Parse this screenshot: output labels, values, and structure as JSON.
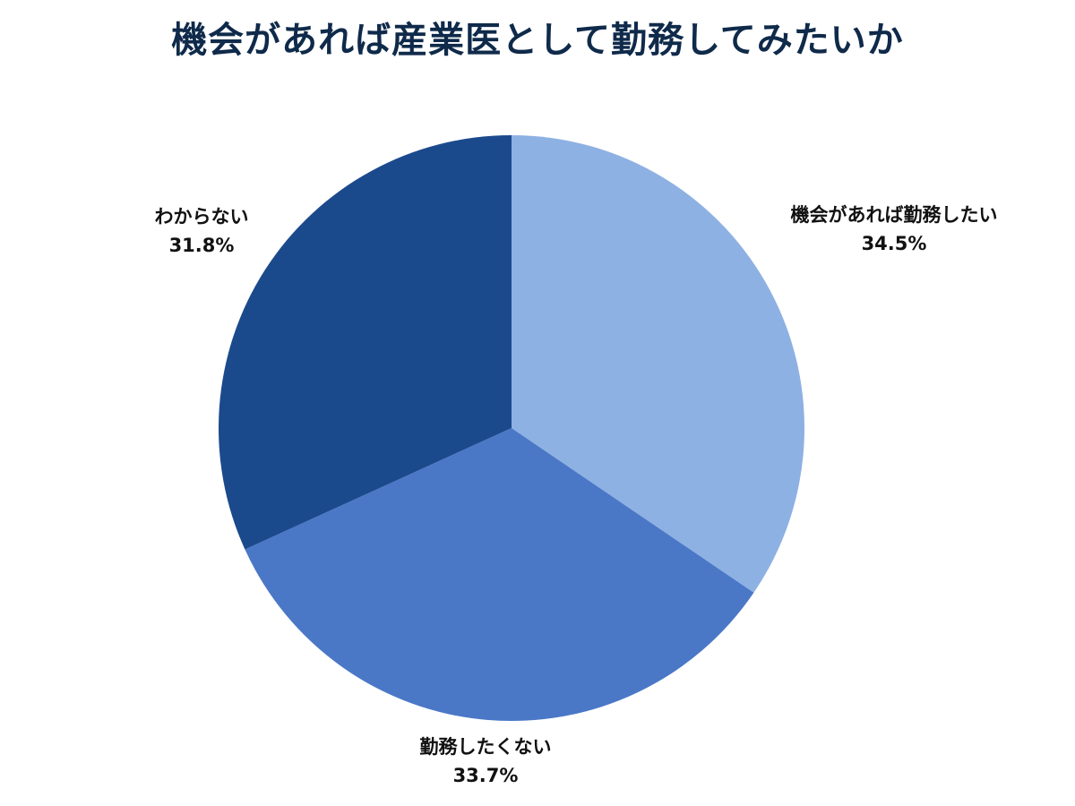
{
  "chart_data": {
    "type": "pie",
    "title": "機会があれば産業医として勤務してみたいか",
    "categories": [
      "機会があれば勤務したい",
      "勤務したくない",
      "わからない"
    ],
    "values": [
      34.5,
      33.7,
      31.8
    ],
    "unit": "%",
    "colors": [
      "#8eb1e3",
      "#4a78c7",
      "#1b4a8c"
    ],
    "start_angle": "12 o'clock",
    "direction": "clockwise",
    "legend": "none (direct labels)",
    "labels": [
      {
        "name": "機会があれば勤務したい",
        "value": "34.5%"
      },
      {
        "name": "勤務したくない",
        "value": "33.7%"
      },
      {
        "name": "わからない",
        "value": "31.8%"
      }
    ]
  }
}
